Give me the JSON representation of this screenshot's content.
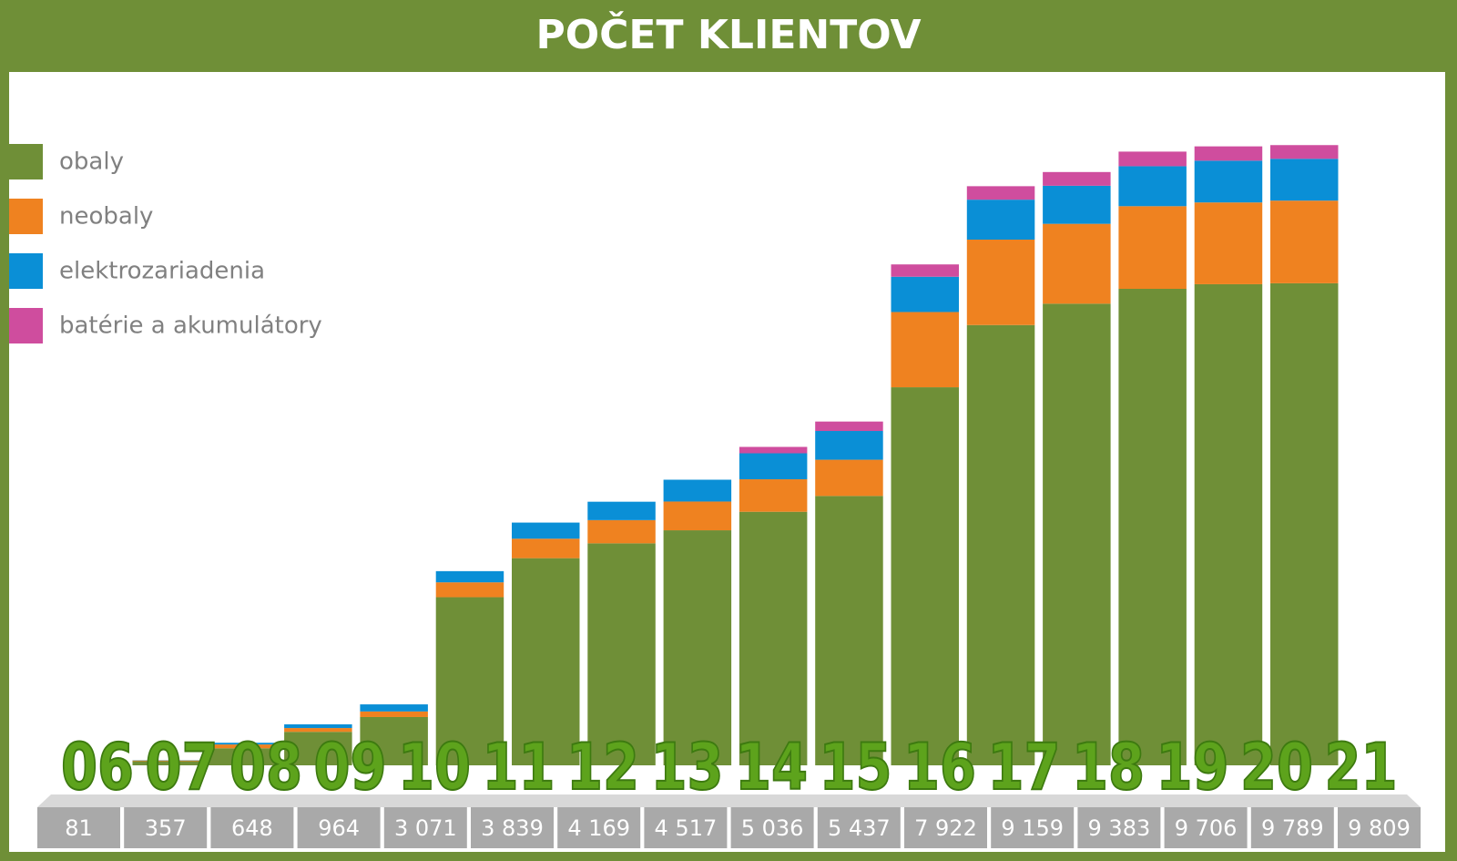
{
  "chart_data": {
    "type": "stacked-bar",
    "title": "POČET KLIENTOV",
    "categories": [
      "06",
      "07",
      "08",
      "09",
      "10",
      "11",
      "12",
      "13",
      "14",
      "15",
      "16",
      "17",
      "18",
      "19",
      "20",
      "21"
    ],
    "series": [
      {
        "name": "obaly",
        "color": "#6f8f37",
        "values": [
          65,
          270,
          530,
          764,
          2659,
          3276,
          3511,
          3717,
          4010,
          4260,
          5979,
          6963,
          7301,
          7536,
          7609,
          7624
        ]
      },
      {
        "name": "neobaly",
        "color": "#ef8220",
        "values": [
          12,
          60,
          60,
          88,
          235,
          308,
          367,
          455,
          514,
          573,
          1190,
          1351,
          1263,
          1307,
          1293,
          1307
        ]
      },
      {
        "name": "elektrozariadenia",
        "color": "#0a8fd6",
        "values": [
          4,
          27,
          58,
          112,
          177,
          255,
          291,
          345,
          411,
          455,
          558,
          632,
          602,
          632,
          661,
          661
        ]
      },
      {
        "name": "batérie a akumulátory",
        "color": "#cf4d9e",
        "values": [
          0,
          0,
          0,
          0,
          0,
          0,
          0,
          0,
          101,
          149,
          195,
          213,
          217,
          231,
          226,
          217
        ]
      }
    ],
    "totals": [
      81,
      357,
      648,
      964,
      3071,
      3839,
      4169,
      4517,
      5036,
      5437,
      7922,
      9159,
      9383,
      9706,
      9789,
      9809
    ],
    "total_labels": [
      "81",
      "357",
      "648",
      "964",
      "3 071",
      "3 839",
      "4 169",
      "4 517",
      "5 036",
      "5 437",
      "7 922",
      "9 159",
      "9 383",
      "9 706",
      "9 789",
      "9 809"
    ],
    "ylim": [
      0,
      10000
    ]
  }
}
